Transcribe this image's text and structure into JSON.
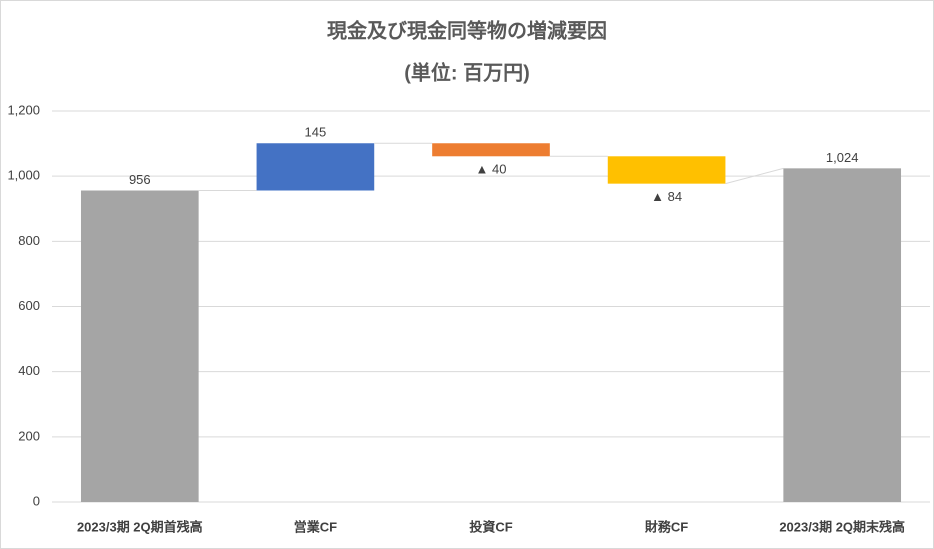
{
  "chart_data": {
    "type": "waterfall",
    "title": "現金及び現金同等物の増減要因",
    "subtitle": "(単位: 百万円)",
    "categories": [
      "2023/3期 2Q期首残高",
      "営業CF",
      "投資CF",
      "財務CF",
      "2023/3期 2Q期末残高"
    ],
    "values": [
      956,
      145,
      -40,
      -84,
      1024
    ],
    "value_labels": [
      "956",
      "145",
      "▲ 40",
      "▲ 84",
      "1,024"
    ],
    "colors": [
      "#a5a5a5",
      "#4472c4",
      "#ed7d31",
      "#ffc000",
      "#a5a5a5"
    ],
    "ylim": [
      0,
      1200
    ],
    "yticks": [
      0,
      200,
      400,
      600,
      800,
      {
        "value": 1000,
        "label": "1,000"
      },
      {
        "value": 1200,
        "label": "1,200"
      }
    ],
    "grid": true
  }
}
